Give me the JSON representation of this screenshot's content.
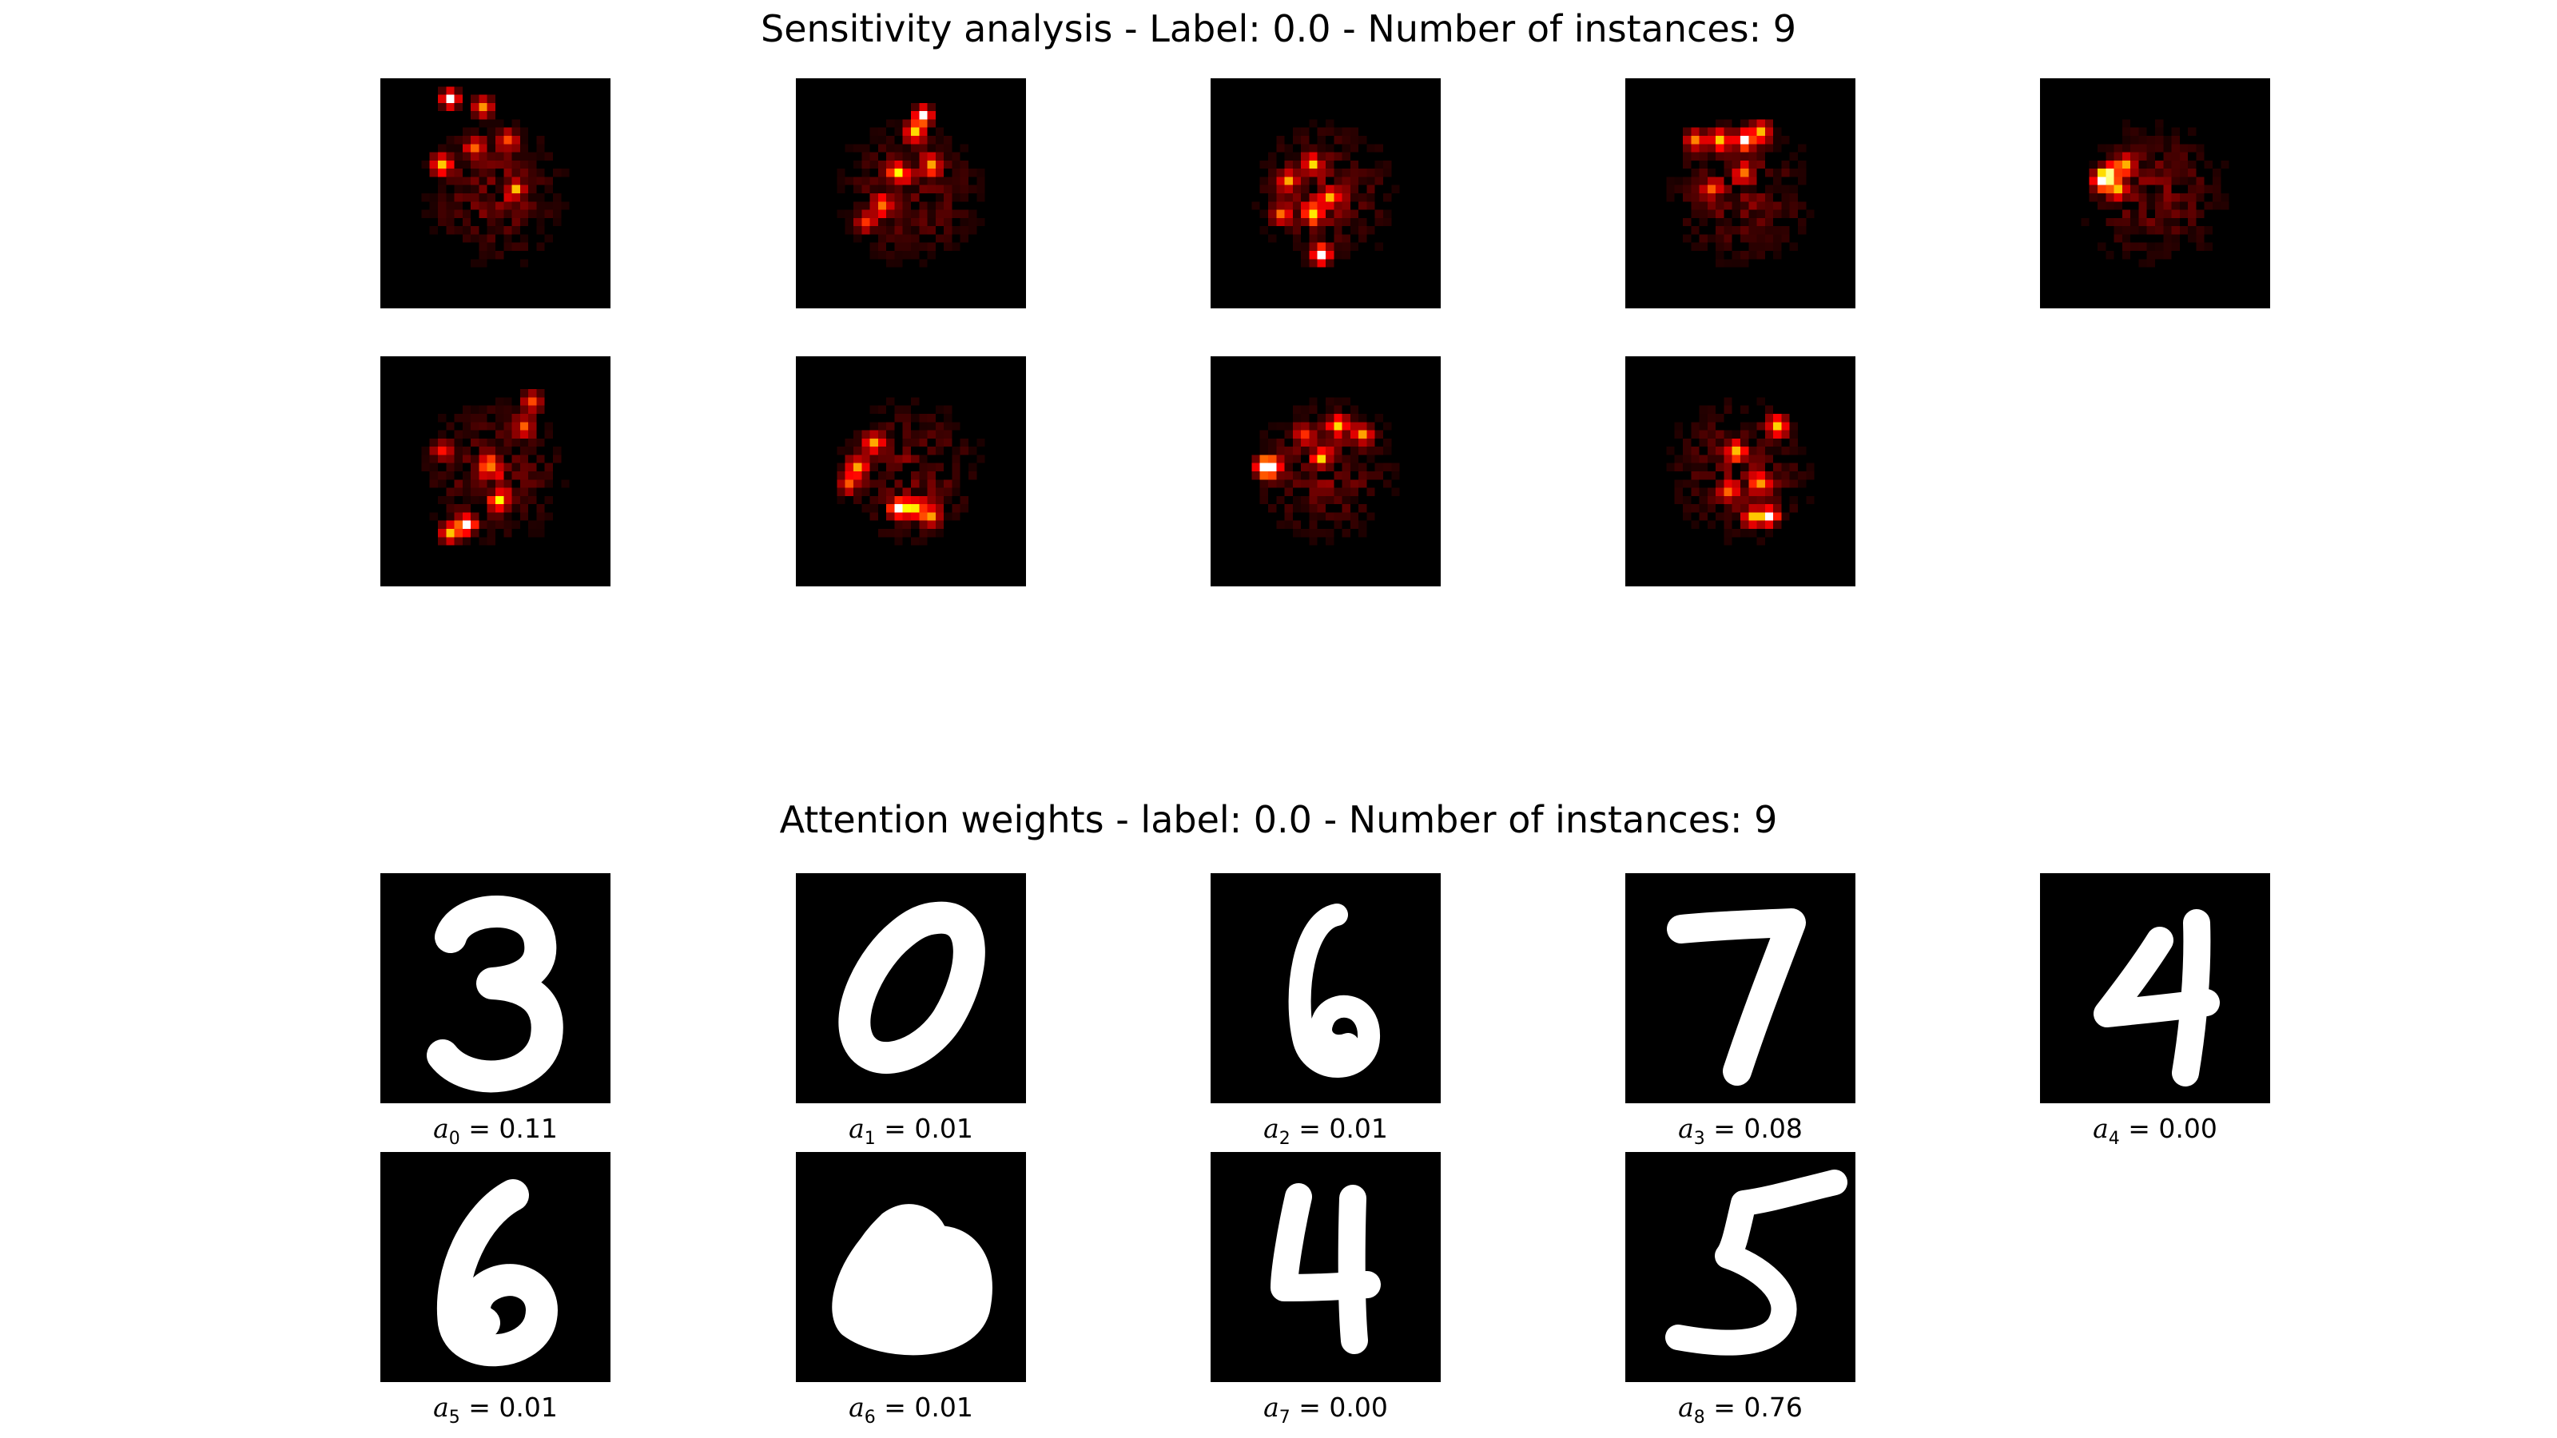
{
  "chart_data": [
    {
      "type": "heatmap",
      "title": "Sensitivity analysis - Label: 0.0 - Number of instances: 9",
      "colormap": "hot",
      "panels": [
        {
          "index": 0,
          "hotspots": [
            [
              8,
              2
            ],
            [
              7,
              10
            ],
            [
              12,
              3
            ],
            [
              16,
              13
            ],
            [
              11,
              8
            ],
            [
              15,
              7
            ]
          ]
        },
        {
          "index": 1,
          "hotspots": [
            [
              15,
              4
            ],
            [
              14,
              6
            ],
            [
              12,
              11
            ],
            [
              16,
              10
            ],
            [
              10,
              15
            ],
            [
              8,
              17
            ]
          ]
        },
        {
          "index": 2,
          "hotspots": [
            [
              13,
              21
            ],
            [
              12,
              16
            ],
            [
              14,
              14
            ],
            [
              12,
              10
            ],
            [
              9,
              12
            ],
            [
              8,
              16
            ]
          ]
        },
        {
          "index": 3,
          "hotspots": [
            [
              14,
              7
            ],
            [
              11,
              7
            ],
            [
              16,
              6
            ],
            [
              8,
              7
            ],
            [
              10,
              13
            ],
            [
              14,
              11
            ]
          ]
        },
        {
          "index": 4,
          "hotspots": [
            [
              7,
              12
            ],
            [
              8,
              11
            ],
            [
              9,
              13
            ],
            [
              10,
              10
            ]
          ]
        },
        {
          "index": 5,
          "hotspots": [
            [
              10,
              20
            ],
            [
              8,
              21
            ],
            [
              14,
              17
            ],
            [
              13,
              13
            ],
            [
              18,
              5
            ],
            [
              17,
              8
            ],
            [
              7,
              11
            ]
          ]
        },
        {
          "index": 6,
          "hotspots": [
            [
              12,
              18
            ],
            [
              14,
              18
            ],
            [
              7,
              13
            ],
            [
              9,
              10
            ],
            [
              16,
              19
            ],
            [
              6,
              15
            ]
          ]
        },
        {
          "index": 7,
          "hotspots": [
            [
              6,
              13
            ],
            [
              7,
              13
            ],
            [
              15,
              8
            ],
            [
              18,
              9
            ],
            [
              13,
              12
            ],
            [
              11,
              9
            ]
          ]
        },
        {
          "index": 8,
          "hotspots": [
            [
              17,
              19
            ],
            [
              18,
              8
            ],
            [
              15,
              19
            ],
            [
              16,
              15
            ],
            [
              13,
              11
            ],
            [
              12,
              16
            ]
          ]
        }
      ]
    },
    {
      "type": "image_grid",
      "title": "Attention weights - label: 0.0 - Number of instances: 9",
      "instances": [
        {
          "digit": "3",
          "symbol": "a",
          "index": "0",
          "value": "0.11"
        },
        {
          "digit": "0",
          "symbol": "a",
          "index": "1",
          "value": "0.01"
        },
        {
          "digit": "6",
          "symbol": "a",
          "index": "2",
          "value": "0.01"
        },
        {
          "digit": "7",
          "symbol": "a",
          "index": "3",
          "value": "0.08"
        },
        {
          "digit": "4",
          "symbol": "a",
          "index": "4",
          "value": "0.00"
        },
        {
          "digit": "6",
          "symbol": "a",
          "index": "5",
          "value": "0.01"
        },
        {
          "digit": "6",
          "symbol": "a",
          "index": "6",
          "value": "0.01"
        },
        {
          "digit": "4",
          "symbol": "a",
          "index": "7",
          "value": "0.00"
        },
        {
          "digit": "5",
          "symbol": "a",
          "index": "8",
          "value": "0.76"
        }
      ]
    }
  ],
  "colors": {
    "background": "#ffffff",
    "panel": "#000000",
    "digit_stroke": "#ffffff"
  }
}
